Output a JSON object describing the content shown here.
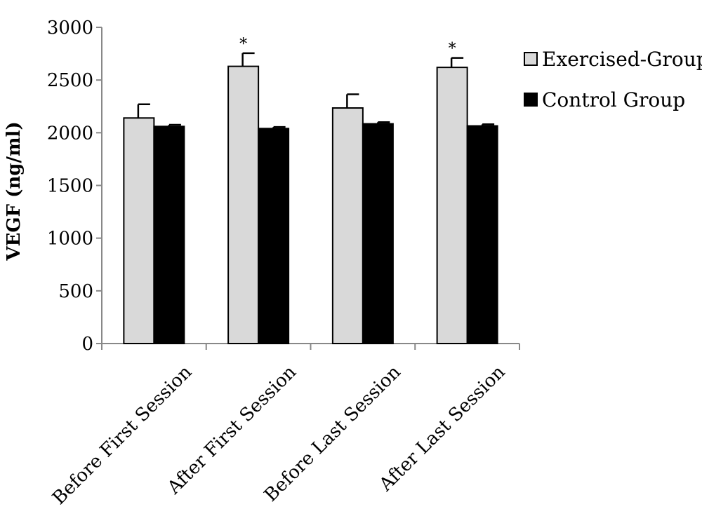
{
  "chart_data": {
    "type": "bar",
    "ylabel": "VEGF (ng/ml)",
    "xlabel": "",
    "ylim": [
      0,
      3000
    ],
    "yticks": [
      "0",
      "500",
      "1000",
      "1500",
      "2000",
      "2500",
      "3000"
    ],
    "categories": [
      "Before First Session",
      "After First Session",
      "Before Last Session",
      "After Last Session"
    ],
    "series": [
      {
        "name": "Exercised-Group",
        "color": "#d9d9d9",
        "values": [
          2140,
          2630,
          2235,
          2620
        ],
        "errors": [
          130,
          125,
          130,
          90
        ],
        "annotations": [
          "",
          "*",
          "",
          "*"
        ]
      },
      {
        "name": "Control Group",
        "color": "#000000",
        "values": [
          2060,
          2040,
          2085,
          2065
        ],
        "errors": [
          15,
          15,
          15,
          15
        ],
        "annotations": [
          "",
          "",
          "",
          ""
        ]
      }
    ],
    "legend_position": "top-right",
    "grid": false
  }
}
